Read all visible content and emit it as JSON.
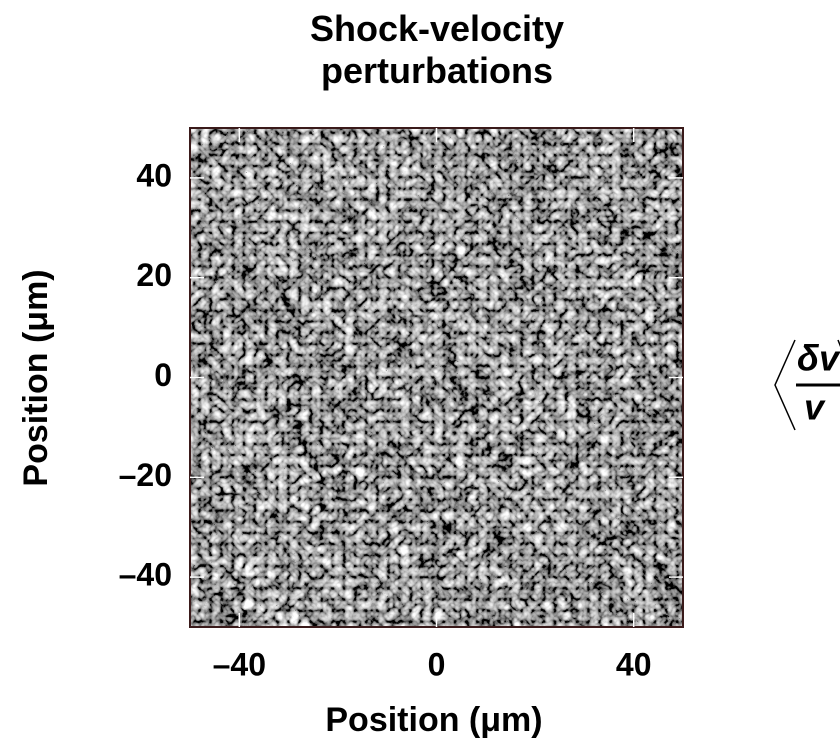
{
  "chart_data": {
    "type": "heatmap",
    "title": "Shock-velocity perturbations",
    "xlabel": "Position (μm)",
    "ylabel": "Position (μm)",
    "xlim": [
      -50,
      50
    ],
    "ylim": [
      -50,
      50
    ],
    "xticks": [
      {
        "value": -40,
        "label": "–40"
      },
      0,
      40
    ],
    "yticks": [
      {
        "value": -40,
        "label": "–40"
      },
      {
        "value": -20,
        "label": "–20"
      },
      0,
      20,
      40
    ],
    "colormap": "gray",
    "annotation": {
      "numerator": "δv",
      "denominator": "v"
    }
  }
}
